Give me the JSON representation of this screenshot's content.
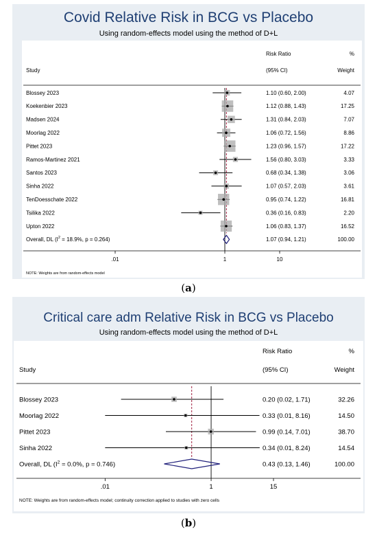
{
  "charts": [
    {
      "type": "forest",
      "title": "Covid  Relative Risk in BCG vs Placebo",
      "subtitle": "Using random-effects model using the method of D+L",
      "header_study": "Study",
      "header_rr_line1": "Risk Ratio",
      "header_rr_line2": "(95% CI)",
      "header_weight_line1": "%",
      "header_weight_line2": "Weight",
      "x_ticks": [
        {
          "value": 0.01,
          "label": ".01"
        },
        {
          "value": 1,
          "label": "1"
        },
        {
          "value": 10,
          "label": "10"
        }
      ],
      "x_range": [
        0.001,
        100
      ],
      "x_scale": "log",
      "studies": [
        {
          "name": "Blossey 2023",
          "rr": 1.1,
          "lo": 0.6,
          "hi": 2.0,
          "ci": "1.10 (0.60, 2.00)",
          "weight": "4.07",
          "w": 4.07
        },
        {
          "name": "Koekenbier 2023",
          "rr": 1.12,
          "lo": 0.88,
          "hi": 1.43,
          "ci": "1.12 (0.88, 1.43)",
          "weight": "17.25",
          "w": 17.25
        },
        {
          "name": "Madsen 2024",
          "rr": 1.31,
          "lo": 0.84,
          "hi": 2.03,
          "ci": "1.31 (0.84, 2.03)",
          "weight": "7.07",
          "w": 7.07
        },
        {
          "name": "Moorlag 2022",
          "rr": 1.06,
          "lo": 0.72,
          "hi": 1.56,
          "ci": "1.06 (0.72, 1.56)",
          "weight": "8.86",
          "w": 8.86
        },
        {
          "name": "Pittet 2023",
          "rr": 1.23,
          "lo": 0.96,
          "hi": 1.57,
          "ci": "1.23 (0.96, 1.57)",
          "weight": "17.22",
          "w": 17.22
        },
        {
          "name": "Ramos-Martinez 2021",
          "rr": 1.56,
          "lo": 0.8,
          "hi": 3.03,
          "ci": "1.56 (0.80, 3.03)",
          "weight": "3.33",
          "w": 3.33
        },
        {
          "name": "Santos 2023",
          "rr": 0.68,
          "lo": 0.34,
          "hi": 1.38,
          "ci": "0.68 (0.34, 1.38)",
          "weight": "3.06",
          "w": 3.06
        },
        {
          "name": "Sinha 2022",
          "rr": 1.07,
          "lo": 0.57,
          "hi": 2.03,
          "ci": "1.07 (0.57, 2.03)",
          "weight": "3.61",
          "w": 3.61
        },
        {
          "name": "TenDoesschate 2022",
          "rr": 0.95,
          "lo": 0.74,
          "hi": 1.22,
          "ci": "0.95 (0.74, 1.22)",
          "weight": "16.81",
          "w": 16.81
        },
        {
          "name": "Tsilika 2022",
          "rr": 0.36,
          "lo": 0.16,
          "hi": 0.83,
          "ci": "0.36 (0.16, 0.83)",
          "weight": "2.20",
          "w": 2.2
        },
        {
          "name": "Upton 2022",
          "rr": 1.06,
          "lo": 0.83,
          "hi": 1.37,
          "ci": "1.06 (0.83, 1.37)",
          "weight": "16.52",
          "w": 16.52
        }
      ],
      "overall": {
        "label_prefix": "Overall, DL (I",
        "label_sup": "2",
        "label_suffix": " = 18.9%, p = 0.264)",
        "rr": 1.07,
        "lo": 0.94,
        "hi": 1.21,
        "ci": "1.07 (0.94, 1.21)",
        "weight": "100.00"
      },
      "note": "NOTE: Weights are from random-effects model",
      "caption_label": "a"
    },
    {
      "type": "forest",
      "title": "Critical care adm Relative Risk in BCG vs Placebo",
      "subtitle": "Using random-effects model using the method of D+L",
      "header_study": "Study",
      "header_rr_line1": "Risk Ratio",
      "header_rr_line2": "(95% CI)",
      "header_weight_line1": "%",
      "header_weight_line2": "Weight",
      "x_ticks": [
        {
          "value": 0.01,
          "label": ".01"
        },
        {
          "value": 1,
          "label": "1"
        },
        {
          "value": 15,
          "label": "15"
        }
      ],
      "x_range": [
        0.001,
        200
      ],
      "x_scale": "log",
      "studies": [
        {
          "name": "Blossey 2023",
          "rr": 0.2,
          "lo": 0.02,
          "hi": 1.71,
          "ci": "0.20 (0.02, 1.71)",
          "weight": "32.26",
          "w": 32.26
        },
        {
          "name": "Moorlag 2022",
          "rr": 0.33,
          "lo": 0.01,
          "hi": 8.16,
          "ci": "0.33 (0.01, 8.16)",
          "weight": "14.50",
          "w": 14.5
        },
        {
          "name": "Pittet 2023",
          "rr": 0.99,
          "lo": 0.14,
          "hi": 7.01,
          "ci": "0.99 (0.14, 7.01)",
          "weight": "38.70",
          "w": 38.7
        },
        {
          "name": "Sinha 2022",
          "rr": 0.34,
          "lo": 0.01,
          "hi": 8.24,
          "ci": "0.34 (0.01, 8.24)",
          "weight": "14.54",
          "w": 14.54
        }
      ],
      "overall": {
        "label_prefix": "Overall, DL (I",
        "label_sup": "2",
        "label_suffix": " = 0.0%, p = 0.746)",
        "rr": 0.43,
        "lo": 0.13,
        "hi": 1.46,
        "ci": "0.43 (0.13, 1.46)",
        "weight": "100.00"
      },
      "note": "NOTE: Weights are from random-effects model; continuity correction applied to studies with zero cells",
      "caption_label": "b"
    }
  ],
  "chart_data": [
    {
      "type": "scatter",
      "title": "Covid  Relative Risk in BCG vs Placebo",
      "subtitle": "Using random-effects model using the method of D+L",
      "xscale": "log",
      "xticks": [
        0.01,
        1,
        10
      ],
      "categories": [
        "Blossey 2023",
        "Koekenbier 2023",
        "Madsen 2024",
        "Moorlag 2022",
        "Pittet 2023",
        "Ramos-Martinez 2021",
        "Santos 2023",
        "Sinha 2022",
        "TenDoesschate 2022",
        "Tsilika 2022",
        "Upton 2022",
        "Overall, DL"
      ],
      "series": [
        {
          "name": "Risk Ratio",
          "values": [
            1.1,
            1.12,
            1.31,
            1.06,
            1.23,
            1.56,
            0.68,
            1.07,
            0.95,
            0.36,
            1.06,
            1.07
          ]
        },
        {
          "name": "Lower 95% CI",
          "values": [
            0.6,
            0.88,
            0.84,
            0.72,
            0.96,
            0.8,
            0.34,
            0.57,
            0.74,
            0.16,
            0.83,
            0.94
          ]
        },
        {
          "name": "Upper 95% CI",
          "values": [
            2.0,
            1.43,
            2.03,
            1.56,
            1.57,
            3.03,
            1.38,
            2.03,
            1.22,
            0.83,
            1.37,
            1.21
          ]
        },
        {
          "name": "% Weight",
          "values": [
            4.07,
            17.25,
            7.07,
            8.86,
            17.22,
            3.33,
            3.06,
            3.61,
            16.81,
            2.2,
            16.52,
            100.0
          ]
        }
      ],
      "grid": false
    },
    {
      "type": "scatter",
      "title": "Critical care adm Relative Risk in BCG vs Placebo",
      "subtitle": "Using random-effects model using the method of D+L",
      "xscale": "log",
      "xticks": [
        0.01,
        1,
        15
      ],
      "categories": [
        "Blossey 2023",
        "Moorlag 2022",
        "Pittet 2023",
        "Sinha 2022",
        "Overall, DL"
      ],
      "series": [
        {
          "name": "Risk Ratio",
          "values": [
            0.2,
            0.33,
            0.99,
            0.34,
            0.43
          ]
        },
        {
          "name": "Lower 95% CI",
          "values": [
            0.02,
            0.01,
            0.14,
            0.01,
            0.13
          ]
        },
        {
          "name": "Upper 95% CI",
          "values": [
            1.71,
            8.16,
            7.01,
            8.24,
            1.46
          ]
        },
        {
          "name": "% Weight",
          "values": [
            32.26,
            14.5,
            38.7,
            14.54,
            100.0
          ]
        }
      ],
      "grid": false
    }
  ],
  "colors": {
    "panel_bg": "#e9eef3",
    "title": "#1f3f73",
    "diamond": "#1f1f7a",
    "dashed_line": "#a02040",
    "weight_box": "#a9a9a9"
  }
}
